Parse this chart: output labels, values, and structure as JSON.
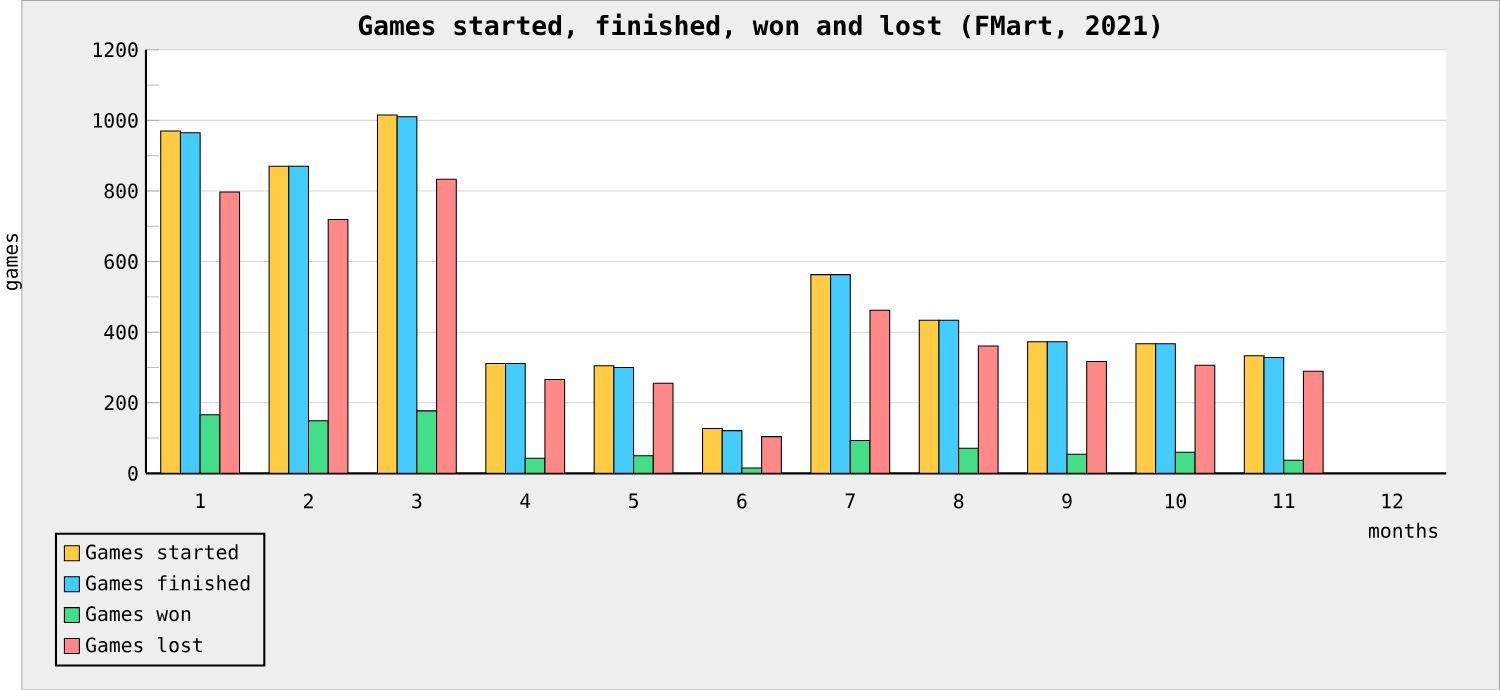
{
  "chart_data": {
    "type": "bar",
    "title": "Games started, finished, won and lost (FMart, 2021)",
    "xlabel": "months",
    "ylabel": "games",
    "categories": [
      "1",
      "2",
      "3",
      "4",
      "5",
      "6",
      "7",
      "8",
      "9",
      "10",
      "11",
      "12"
    ],
    "series": [
      {
        "name": "Games started",
        "color": "#ffcc44",
        "values": [
          970,
          870,
          1015,
          311,
          305,
          127,
          563,
          434,
          373,
          367,
          333,
          null
        ]
      },
      {
        "name": "Games finished",
        "color": "#44ccff",
        "values": [
          965,
          870,
          1010,
          311,
          300,
          121,
          563,
          434,
          373,
          367,
          328,
          null
        ]
      },
      {
        "name": "Games won",
        "color": "#44dd88",
        "values": [
          166,
          149,
          177,
          43,
          50,
          15,
          93,
          71,
          54,
          60,
          37,
          null
        ]
      },
      {
        "name": "Games lost",
        "color": "#ff8888",
        "values": [
          797,
          719,
          833,
          266,
          255,
          104,
          462,
          361,
          317,
          306,
          289,
          null
        ]
      }
    ],
    "ylim": [
      0,
      1200
    ],
    "yticks": [
      0,
      200,
      400,
      600,
      800,
      1000,
      1200
    ],
    "grid": "y",
    "legend": "bottom left"
  }
}
